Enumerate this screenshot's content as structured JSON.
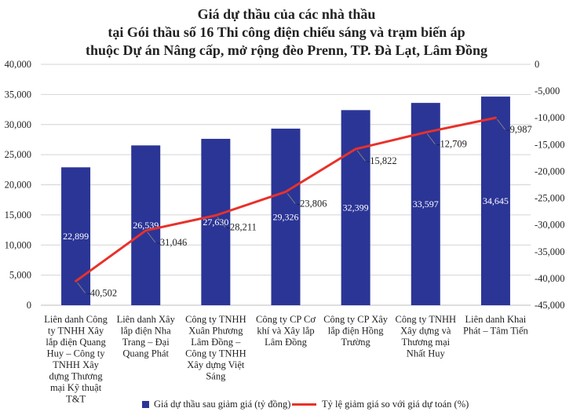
{
  "chart_data": {
    "type": "bar",
    "title_lines": [
      "Giá dự thầu của các nhà thầu",
      "tại Gói thầu số 16 Thi công điện chiếu sáng và trạm biến áp",
      "thuộc Dự án Nâng cấp, mở rộng đèo Prenn, TP. Đà Lạt, Lâm Đồng"
    ],
    "categories": [
      [
        "Liên danh Công",
        "ty TNHH Xây",
        "lắp điện Quang",
        "Huy – Công ty",
        "TNHH Xây",
        "dựng Thương",
        "mại Kỹ thuật",
        "T&T"
      ],
      [
        "Liên danh Xây",
        "lắp điện Nha",
        "Trang – Đại",
        "Quang Phát"
      ],
      [
        "Công ty TNHH",
        "Xuân Phương",
        "Lâm Đồng –",
        "Công ty TNHH",
        "Xây dựng Việt",
        "Sáng"
      ],
      [
        "Công ty CP Cơ",
        "khí và Xây lắp",
        "Lâm Đồng"
      ],
      [
        "Công ty CP Xây",
        "lắp điện Hồng",
        "Trường"
      ],
      [
        "Công ty TNHH",
        "Xây dựng và",
        "Thương mại",
        "Nhất Huy"
      ],
      [
        "Liên danh Khai",
        "Phát – Tâm Tiến"
      ]
    ],
    "series": [
      {
        "name": "Giá dự thầu sau giảm giá (tỷ đồng)",
        "type": "bar",
        "axis": "left",
        "color": "#2b3596",
        "values": [
          22899,
          26539,
          27630,
          29326,
          32399,
          33597,
          34645
        ],
        "labels": [
          "22,899",
          "26,539",
          "27,630",
          "29,326",
          "32,399",
          "33,597",
          "34,645"
        ]
      },
      {
        "name": "Tỷ lệ giảm giá so với giá dự toán (%)",
        "type": "line",
        "axis": "right",
        "color": "#e8312a",
        "values": [
          -40502,
          -31046,
          -28211,
          -23806,
          -15822,
          -12709,
          -9987
        ],
        "labels": [
          "-40,502",
          "-31,046",
          "-28,211",
          "-23,806",
          "-15,822",
          "-12,709",
          "-9,987"
        ]
      }
    ],
    "y_left": {
      "ylim": [
        0,
        40000
      ],
      "ticks": [
        0,
        5000,
        10000,
        15000,
        20000,
        25000,
        30000,
        35000,
        40000
      ],
      "tick_labels": [
        "0",
        "5,000",
        "10,000",
        "15,000",
        "20,000",
        "25,000",
        "30,000",
        "35,000",
        "40,000"
      ]
    },
    "y_right": {
      "ylim": [
        -45000,
        0
      ],
      "ticks": [
        0,
        -5000,
        -10000,
        -15000,
        -20000,
        -25000,
        -30000,
        -35000,
        -40000,
        -45000
      ],
      "tick_labels": [
        "0",
        "-5,000",
        "-10,000",
        "-15,000",
        "-20,000",
        "-25,000",
        "-30,000",
        "-35,000",
        "-40,000",
        "-45,000"
      ]
    },
    "grid": true,
    "legend_position": "bottom"
  }
}
